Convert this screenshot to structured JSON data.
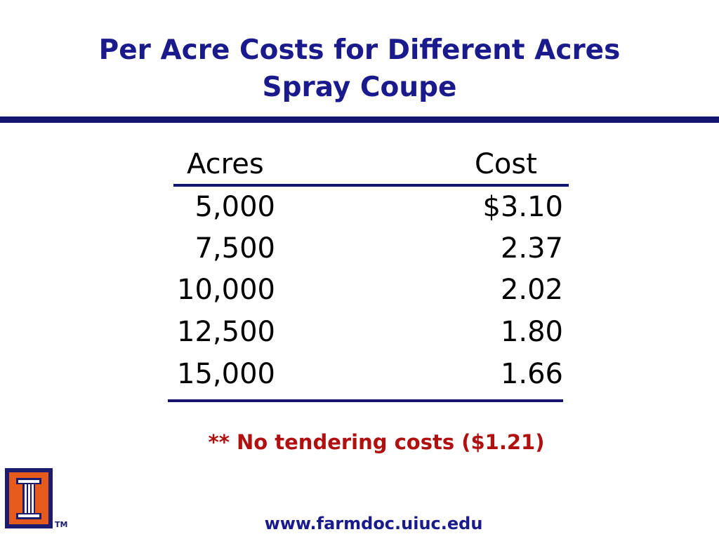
{
  "slide": {
    "title_line1": "Per Acre Costs for Different Acres",
    "title_line2": "Spray Coupe",
    "note": "** No tendering costs ($1.21)",
    "url": "www.farmdoc.uiuc.edu",
    "trademark": "TM"
  },
  "table": {
    "headers": {
      "acres": "Acres",
      "cost": "Cost"
    },
    "rows": [
      {
        "acres": "5,000",
        "cost": "$3.10"
      },
      {
        "acres": "7,500",
        "cost": "2.37"
      },
      {
        "acres": "10,000",
        "cost": "2.02"
      },
      {
        "acres": "12,500",
        "cost": "1.80"
      },
      {
        "acres": "15,000",
        "cost": "1.66"
      }
    ]
  },
  "colors": {
    "title": "#1a1a8c",
    "rule": "#151572",
    "note": "#b01010",
    "logo_blue": "#1b1c6e",
    "logo_orange": "#e65a1c"
  },
  "logo": {
    "icon": "university-column-icon"
  }
}
